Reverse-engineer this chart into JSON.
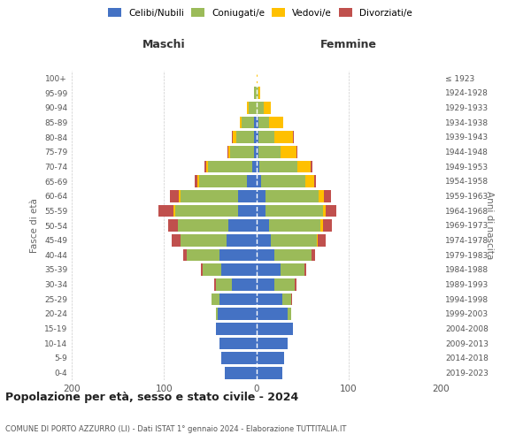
{
  "age_groups": [
    "0-4",
    "5-9",
    "10-14",
    "15-19",
    "20-24",
    "25-29",
    "30-34",
    "35-39",
    "40-44",
    "45-49",
    "50-54",
    "55-59",
    "60-64",
    "65-69",
    "70-74",
    "75-79",
    "80-84",
    "85-89",
    "90-94",
    "95-99",
    "100+"
  ],
  "birth_years": [
    "2019-2023",
    "2014-2018",
    "2009-2013",
    "2004-2008",
    "1999-2003",
    "1994-1998",
    "1989-1993",
    "1984-1988",
    "1979-1983",
    "1974-1978",
    "1969-1973",
    "1964-1968",
    "1959-1963",
    "1954-1958",
    "1949-1953",
    "1944-1948",
    "1939-1943",
    "1934-1938",
    "1929-1933",
    "1924-1928",
    "≤ 1923"
  ],
  "males": {
    "celibi": [
      34,
      38,
      40,
      44,
      42,
      40,
      26,
      38,
      40,
      32,
      30,
      20,
      20,
      10,
      4,
      2,
      2,
      2,
      0,
      0,
      0
    ],
    "coniugati": [
      0,
      0,
      0,
      0,
      2,
      8,
      18,
      20,
      35,
      50,
      55,
      68,
      62,
      52,
      48,
      26,
      20,
      14,
      8,
      2,
      0
    ],
    "vedovi": [
      0,
      0,
      0,
      0,
      0,
      0,
      0,
      0,
      0,
      0,
      0,
      2,
      2,
      2,
      2,
      2,
      3,
      2,
      2,
      0,
      0
    ],
    "divorziati": [
      0,
      0,
      0,
      0,
      0,
      0,
      2,
      2,
      4,
      10,
      10,
      16,
      10,
      3,
      2,
      1,
      1,
      0,
      0,
      0,
      0
    ]
  },
  "females": {
    "nubili": [
      28,
      30,
      34,
      40,
      34,
      28,
      20,
      26,
      20,
      16,
      14,
      10,
      10,
      5,
      3,
      2,
      2,
      2,
      0,
      0,
      0
    ],
    "coniugate": [
      0,
      0,
      0,
      0,
      4,
      10,
      22,
      26,
      40,
      50,
      56,
      62,
      58,
      48,
      42,
      24,
      18,
      12,
      8,
      2,
      0
    ],
    "vedove": [
      0,
      0,
      0,
      0,
      0,
      0,
      0,
      0,
      0,
      1,
      2,
      3,
      5,
      10,
      14,
      18,
      20,
      15,
      8,
      2,
      1
    ],
    "divorziate": [
      0,
      0,
      0,
      0,
      0,
      1,
      2,
      2,
      4,
      8,
      10,
      12,
      8,
      2,
      2,
      1,
      1,
      0,
      0,
      0,
      0
    ]
  },
  "colors": {
    "celibi": "#4472C4",
    "coniugati": "#9BBB59",
    "vedovi": "#FFC000",
    "divorziati": "#C0504D"
  },
  "title": "Popolazione per età, sesso e stato civile - 2024",
  "subtitle": "COMUNE DI PORTO AZZURRO (LI) - Dati ISTAT 1° gennaio 2024 - Elaborazione TUTTITALIA.IT",
  "xlabel_left": "Maschi",
  "xlabel_right": "Femmine",
  "ylabel_left": "Fasce di età",
  "ylabel_right": "Anni di nascita",
  "xlim": 200,
  "background_color": "#ffffff",
  "grid_color": "#cccccc"
}
